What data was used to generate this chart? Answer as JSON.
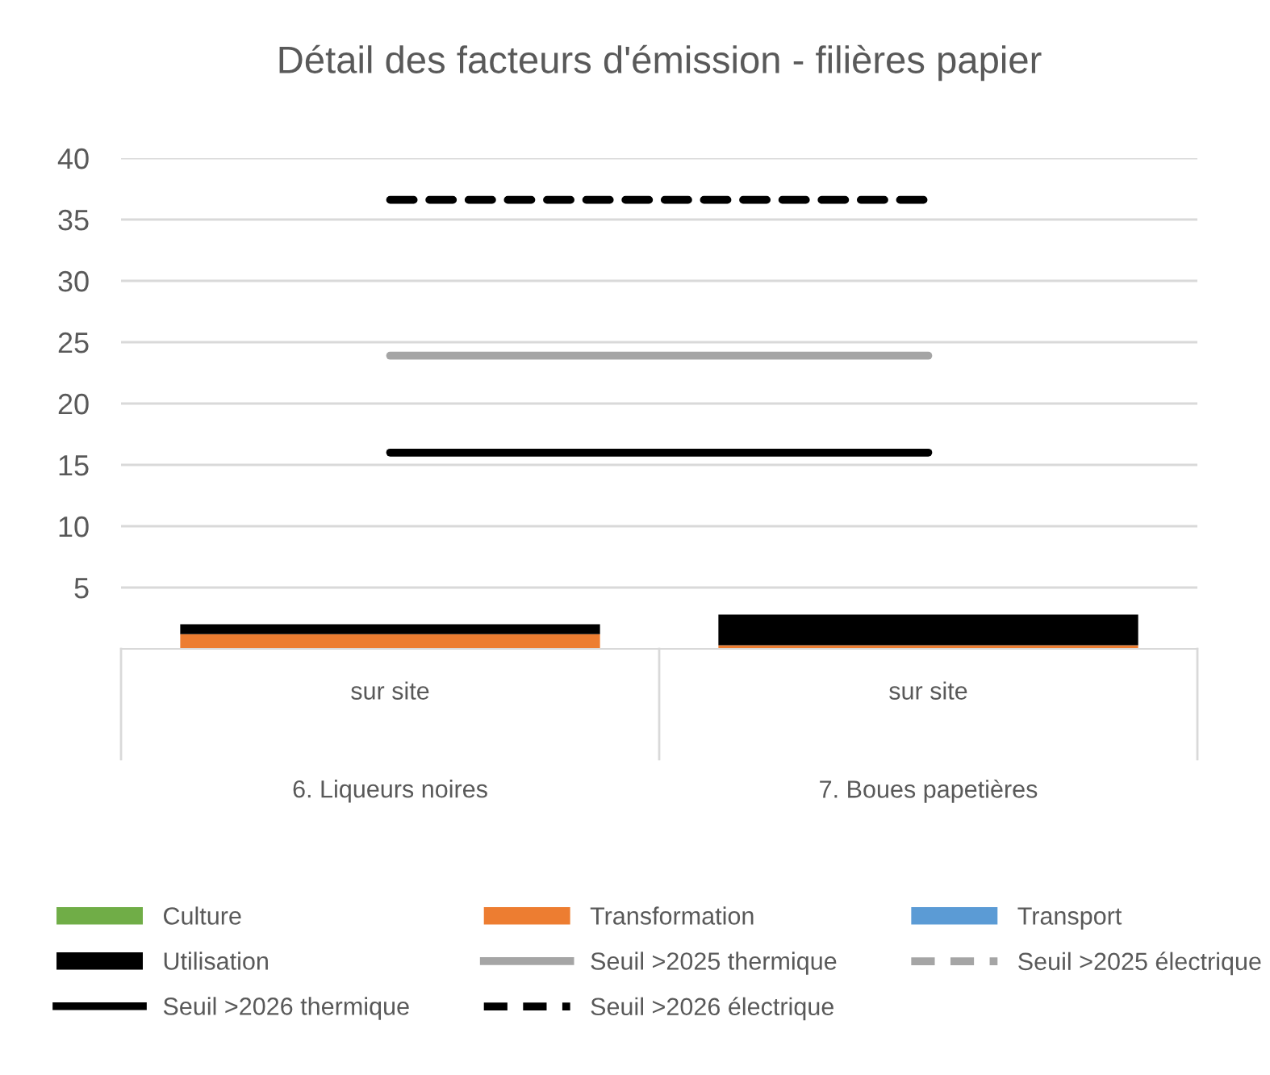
{
  "chart_data": {
    "type": "bar",
    "stacked": true,
    "title": "Détail des facteurs d'émission - filières papier",
    "categories": [
      "sur site\n6. Liqueurs noires",
      "sur site\n7. Boues papetières"
    ],
    "series": [
      {
        "name": "Culture",
        "color": "#70ad47",
        "values": [
          0,
          0
        ]
      },
      {
        "name": "Transformation",
        "color": "#ed7d31",
        "values": [
          1.2,
          0.3
        ]
      },
      {
        "name": "Transport",
        "color": "#5b9bd5",
        "values": [
          0,
          0
        ]
      },
      {
        "name": "Utilisation",
        "color": "#000000",
        "values": [
          0.8,
          2.5
        ]
      },
      {
        "name": "Seuil >2025 thermique",
        "type": "line",
        "color": "#a5a5a5",
        "line_style": "solid",
        "values": [
          23.9,
          23.9
        ]
      },
      {
        "name": "Seuil >2025 électrique",
        "type": "line",
        "color": "#a5a5a5",
        "line_style": "dashed",
        "values": [
          null,
          null
        ]
      },
      {
        "name": "Seuil >2026 thermique",
        "type": "line",
        "color": "#000000",
        "line_style": "solid",
        "values": [
          16,
          16
        ]
      },
      {
        "name": "Seuil >2026 électrique",
        "type": "line",
        "color": "#000000",
        "line_style": "dashed",
        "values": [
          36.6,
          36.6
        ]
      }
    ],
    "ylim": [
      0,
      40
    ],
    "yticks": [
      5,
      10,
      15,
      20,
      25,
      30,
      35,
      40
    ],
    "grid": "y",
    "legend": "bottom"
  }
}
